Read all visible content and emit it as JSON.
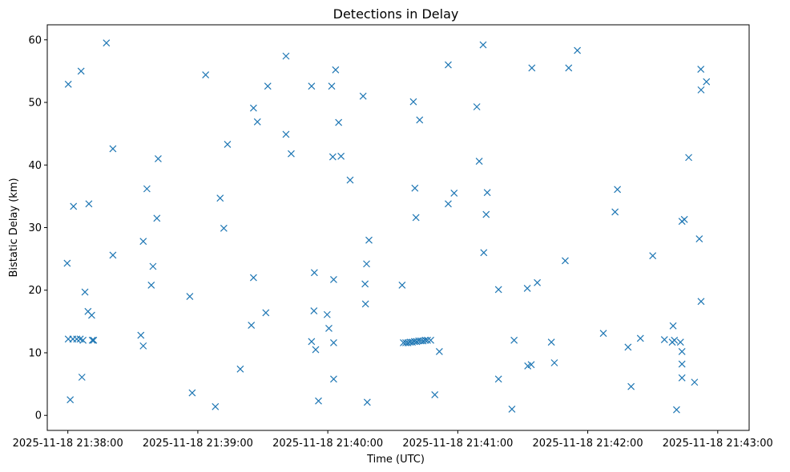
{
  "chart_data": {
    "type": "scatter",
    "title": "Detections in Delay",
    "xlabel": "Time (UTC)",
    "ylabel": "Bistatic Delay (km)",
    "x_unit": "seconds after 2025-11-18 21:38:00",
    "xlim": [
      -9.5,
      314.5
    ],
    "ylim": [
      -2.4,
      62.4
    ],
    "x_ticks": [
      {
        "value": 0,
        "label": "2025-11-18 21:38:00"
      },
      {
        "value": 60,
        "label": "2025-11-18 21:39:00"
      },
      {
        "value": 120,
        "label": "2025-11-18 21:40:00"
      },
      {
        "value": 180,
        "label": "2025-11-18 21:41:00"
      },
      {
        "value": 240,
        "label": "2025-11-18 21:42:00"
      },
      {
        "value": 300,
        "label": "2025-11-18 21:43:00"
      }
    ],
    "y_ticks": [
      {
        "value": 0,
        "label": "0"
      },
      {
        "value": 10,
        "label": "10"
      },
      {
        "value": 20,
        "label": "20"
      },
      {
        "value": 30,
        "label": "30"
      },
      {
        "value": 40,
        "label": "40"
      },
      {
        "value": 50,
        "label": "50"
      },
      {
        "value": 60,
        "label": "60"
      }
    ],
    "marker": "x",
    "color": "#1f77b4",
    "series": [
      {
        "name": "detections",
        "points": [
          [
            0.2,
            52.9
          ],
          [
            -0.3,
            24.3
          ],
          [
            0.2,
            12.2
          ],
          [
            1.1,
            2.5
          ],
          [
            2.6,
            33.4
          ],
          [
            2.3,
            12.2
          ],
          [
            4.1,
            12.2
          ],
          [
            5.7,
            12.2
          ],
          [
            6.1,
            55.0
          ],
          [
            6.5,
            6.1
          ],
          [
            7.0,
            12.0
          ],
          [
            7.9,
            19.7
          ],
          [
            9.7,
            33.8
          ],
          [
            9.3,
            16.6
          ],
          [
            11.0,
            16.0
          ],
          [
            11.3,
            12.0
          ],
          [
            11.9,
            12.0
          ],
          [
            17.8,
            59.5
          ],
          [
            20.8,
            42.6
          ],
          [
            20.8,
            25.6
          ],
          [
            33.7,
            12.8
          ],
          [
            34.8,
            11.1
          ],
          [
            34.8,
            27.8
          ],
          [
            36.5,
            36.2
          ],
          [
            38.5,
            20.8
          ],
          [
            39.3,
            23.8
          ],
          [
            41.1,
            31.5
          ],
          [
            41.7,
            41.0
          ],
          [
            56.3,
            19.0
          ],
          [
            57.4,
            3.6
          ],
          [
            63.6,
            54.4
          ],
          [
            68.1,
            1.4
          ],
          [
            70.3,
            34.7
          ],
          [
            72.0,
            29.9
          ],
          [
            73.7,
            43.3
          ],
          [
            79.6,
            7.4
          ],
          [
            84.7,
            14.4
          ],
          [
            85.7,
            49.1
          ],
          [
            85.7,
            22.0
          ],
          [
            87.5,
            46.9
          ],
          [
            91.4,
            16.4
          ],
          [
            92.3,
            52.6
          ],
          [
            100.7,
            57.4
          ],
          [
            100.7,
            44.9
          ],
          [
            103.1,
            41.8
          ],
          [
            112.5,
            52.6
          ],
          [
            112.5,
            11.8
          ],
          [
            113.6,
            16.7
          ],
          [
            113.8,
            22.8
          ],
          [
            114.4,
            10.5
          ],
          [
            115.7,
            2.3
          ],
          [
            119.7,
            16.1
          ],
          [
            120.5,
            13.9
          ],
          [
            121.8,
            52.6
          ],
          [
            122.3,
            41.3
          ],
          [
            122.7,
            21.7
          ],
          [
            122.7,
            11.6
          ],
          [
            122.7,
            5.8
          ],
          [
            123.6,
            55.2
          ],
          [
            125.0,
            46.8
          ],
          [
            126.1,
            41.4
          ],
          [
            130.3,
            37.6
          ],
          [
            136.3,
            51.0
          ],
          [
            137.2,
            21.0
          ],
          [
            137.4,
            17.8
          ],
          [
            137.9,
            24.2
          ],
          [
            138.2,
            2.1
          ],
          [
            139.0,
            28.0
          ],
          [
            154.3,
            20.8
          ],
          [
            154.9,
            11.6
          ],
          [
            156.0,
            11.6
          ],
          [
            157.0,
            11.6
          ],
          [
            158.0,
            11.7
          ],
          [
            159.0,
            11.7
          ],
          [
            160.0,
            11.8
          ],
          [
            161.0,
            11.8
          ],
          [
            162.0,
            11.9
          ],
          [
            163.0,
            11.9
          ],
          [
            164.0,
            11.9
          ],
          [
            165.0,
            12.0
          ],
          [
            166.0,
            12.0
          ],
          [
            167.5,
            12.0
          ],
          [
            159.5,
            50.1
          ],
          [
            160.2,
            36.3
          ],
          [
            160.7,
            31.6
          ],
          [
            162.4,
            47.2
          ],
          [
            169.4,
            3.3
          ],
          [
            171.5,
            10.2
          ],
          [
            175.6,
            56.0
          ],
          [
            175.6,
            33.8
          ],
          [
            178.3,
            35.5
          ],
          [
            188.8,
            49.3
          ],
          [
            189.9,
            40.6
          ],
          [
            191.7,
            59.2
          ],
          [
            192.0,
            26.0
          ],
          [
            193.1,
            32.1
          ],
          [
            193.6,
            35.6
          ],
          [
            198.8,
            20.1
          ],
          [
            198.8,
            5.8
          ],
          [
            205.0,
            1.0
          ],
          [
            206.0,
            12.0
          ],
          [
            212.1,
            20.3
          ],
          [
            212.3,
            7.9
          ],
          [
            213.9,
            8.1
          ],
          [
            214.2,
            55.5
          ],
          [
            216.7,
            21.2
          ],
          [
            223.2,
            11.7
          ],
          [
            224.6,
            8.4
          ],
          [
            229.6,
            24.7
          ],
          [
            231.2,
            55.5
          ],
          [
            235.2,
            58.3
          ],
          [
            247.2,
            13.1
          ],
          [
            252.6,
            32.5
          ],
          [
            253.7,
            36.1
          ],
          [
            258.6,
            10.9
          ],
          [
            260.0,
            4.6
          ],
          [
            264.3,
            12.3
          ],
          [
            270.0,
            25.5
          ],
          [
            275.4,
            12.1
          ],
          [
            279.0,
            11.7
          ],
          [
            279.4,
            14.3
          ],
          [
            280.0,
            12.0
          ],
          [
            281.0,
            0.9
          ],
          [
            282.8,
            11.7
          ],
          [
            283.5,
            10.2
          ],
          [
            283.5,
            8.2
          ],
          [
            283.5,
            6.0
          ],
          [
            283.5,
            31.0
          ],
          [
            284.6,
            31.3
          ],
          [
            286.6,
            41.2
          ],
          [
            289.3,
            5.3
          ],
          [
            291.5,
            28.2
          ],
          [
            292.2,
            55.3
          ],
          [
            292.3,
            52.0
          ],
          [
            292.3,
            18.2
          ],
          [
            294.8,
            53.3
          ]
        ]
      }
    ]
  }
}
